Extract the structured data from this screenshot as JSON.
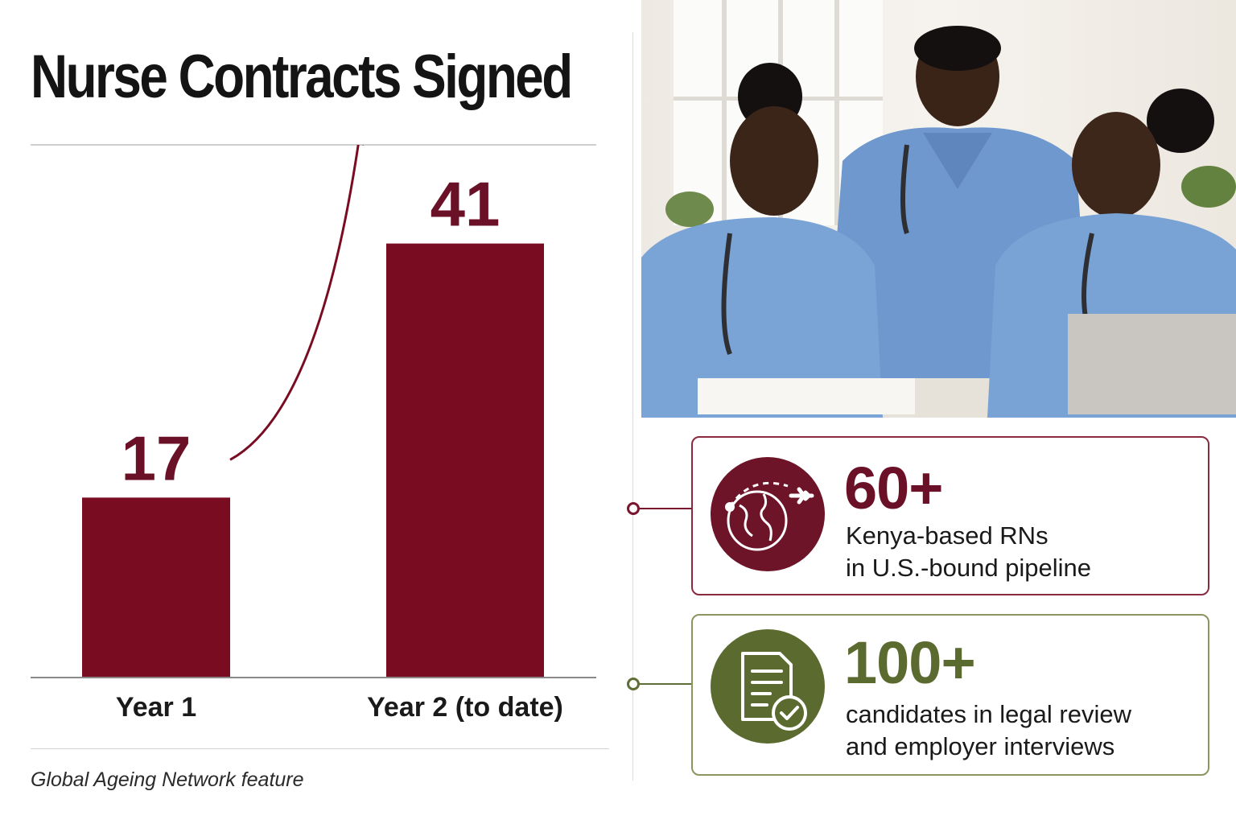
{
  "title": "Nurse Contracts Signed",
  "source": "Global Ageing Network feature",
  "chart_data": {
    "type": "bar",
    "categories": [
      "Year 1",
      "Year 2 (to date)"
    ],
    "values": [
      17,
      41
    ],
    "title": "Nurse Contracts Signed",
    "xlabel": "",
    "ylabel": "",
    "ylim": [
      0,
      45
    ],
    "grid": false,
    "legend": "none",
    "color": "#7a0c22",
    "annotation": "growth-arrow"
  },
  "photo": {
    "description_icon": "nurses-photo"
  },
  "stats": [
    {
      "value": "60+",
      "line1": "Kenya-based RNs",
      "line2": "in U.S.-bound pipeline",
      "icon": "globe-airplane-icon",
      "color": "#6e1428"
    },
    {
      "value": "100+",
      "line1": "candidates in legal review",
      "line2": "and employer interviews",
      "icon": "document-check-icon",
      "color": "#5b6a2e"
    }
  ]
}
